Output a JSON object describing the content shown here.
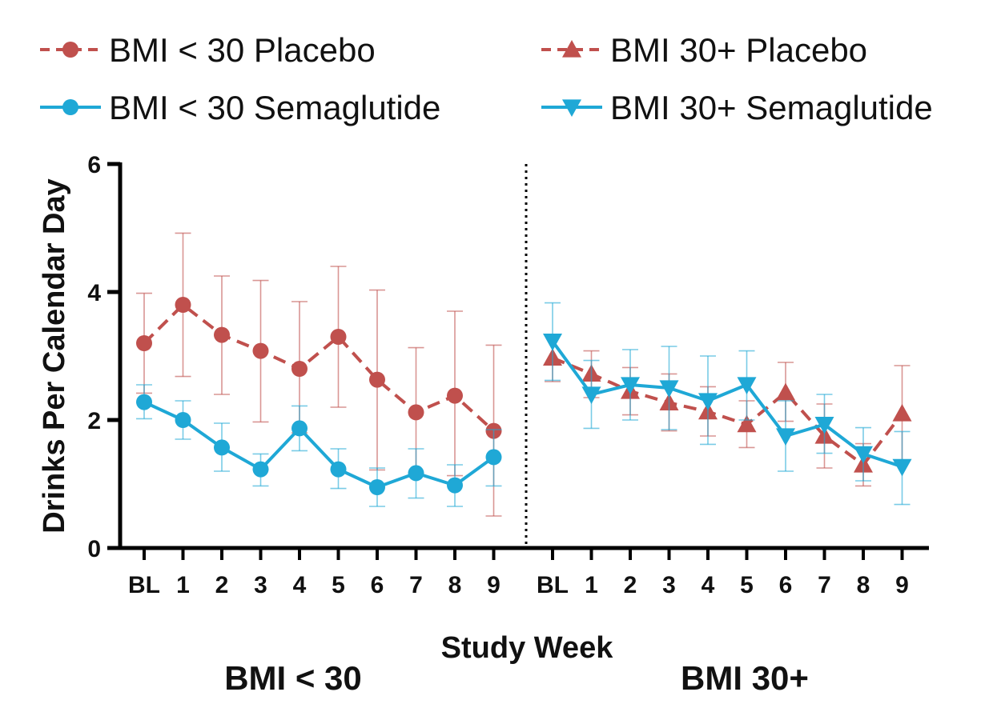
{
  "chart_data": {
    "type": "line",
    "ylabel": "Drinks Per Calendar Day",
    "xlabel": "Study Week",
    "ylim": [
      0,
      6
    ],
    "yticks": [
      "0",
      "2",
      "4",
      "6"
    ],
    "grid": false,
    "legend_position": "top",
    "categories": [
      "BL",
      "1",
      "2",
      "3",
      "4",
      "5",
      "6",
      "7",
      "8",
      "9"
    ],
    "colors": {
      "placebo": "#c0504d",
      "semaglutide": "#1fa8d6"
    },
    "panels": [
      {
        "label": "BMI < 30",
        "series": [
          {
            "name": "BMI < 30 Placebo",
            "group": "placebo",
            "marker": "circle",
            "dash": true,
            "values": [
              3.2,
              3.8,
              3.33,
              3.08,
              2.8,
              3.3,
              2.63,
              2.12,
              2.38,
              1.83
            ],
            "err_low": [
              2.42,
              2.68,
              2.4,
              1.97,
              1.8,
              2.2,
              1.22,
              1.17,
              1.13,
              0.5
            ],
            "err_high": [
              3.98,
              4.92,
              4.25,
              4.18,
              3.85,
              4.4,
              4.03,
              3.13,
              3.7,
              3.17
            ]
          },
          {
            "name": "BMI < 30 Semaglutide",
            "group": "semaglutide",
            "marker": "circle",
            "dash": false,
            "values": [
              2.28,
              2.0,
              1.57,
              1.23,
              1.87,
              1.23,
              0.95,
              1.17,
              0.98,
              1.42
            ],
            "err_low": [
              2.02,
              1.7,
              1.2,
              0.97,
              1.52,
              0.93,
              0.65,
              0.78,
              0.65,
              0.97
            ],
            "err_high": [
              2.55,
              2.3,
              1.95,
              1.47,
              2.22,
              1.55,
              1.25,
              1.55,
              1.3,
              1.85
            ]
          }
        ]
      },
      {
        "label": "BMI 30+",
        "series": [
          {
            "name": "BMI 30+ Placebo",
            "group": "placebo",
            "marker": "triangle-up",
            "dash": true,
            "values": [
              2.97,
              2.72,
              2.45,
              2.27,
              2.13,
              1.93,
              2.43,
              1.75,
              1.3,
              2.1
            ],
            "err_low": [
              2.6,
              2.35,
              2.08,
              1.83,
              1.75,
              1.57,
              1.98,
              1.25,
              0.97,
              1.35
            ],
            "err_high": [
              3.33,
              3.08,
              2.82,
              2.72,
              2.52,
              2.3,
              2.9,
              2.25,
              1.63,
              2.85
            ]
          },
          {
            "name": "BMI 30+ Semaglutide",
            "group": "semaglutide",
            "marker": "triangle-down",
            "dash": false,
            "values": [
              3.23,
              2.4,
              2.55,
              2.5,
              2.3,
              2.55,
              1.75,
              1.93,
              1.47,
              1.27
            ],
            "err_low": [
              2.62,
              1.87,
              2.0,
              1.85,
              1.62,
              2.0,
              1.2,
              1.48,
              1.05,
              0.68
            ],
            "err_high": [
              3.83,
              2.93,
              3.1,
              3.15,
              3.0,
              3.08,
              2.3,
              2.4,
              1.88,
              1.82
            ]
          }
        ]
      }
    ],
    "legend": [
      "BMI < 30 Placebo",
      "BMI 30+ Placebo",
      "BMI < 30 Semaglutide",
      "BMI 30+ Semaglutide"
    ]
  }
}
